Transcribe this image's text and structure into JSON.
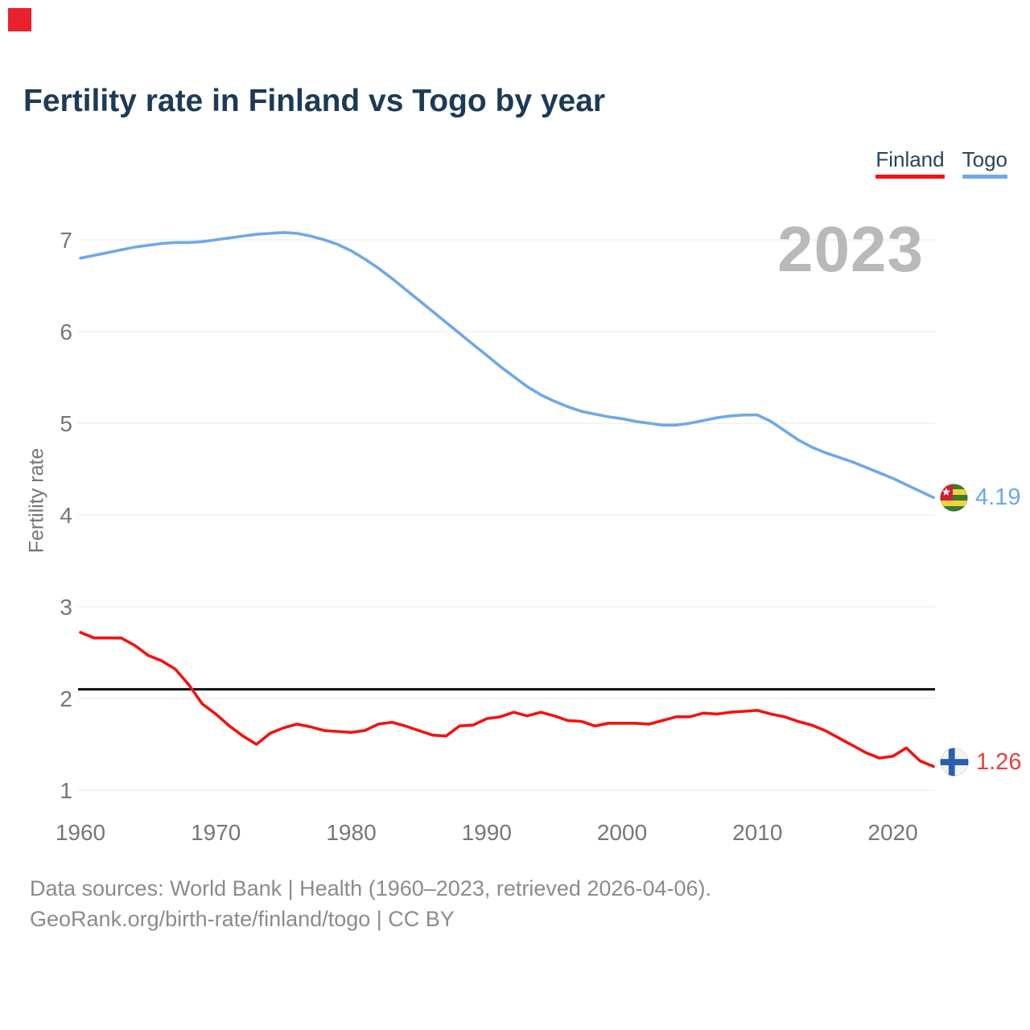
{
  "logo_color": "#e8212b",
  "header": {
    "title": "Fertility rate in Finland vs Togo by year"
  },
  "legend": {
    "items": [
      {
        "label": "Finland",
        "color": "#f31212"
      },
      {
        "label": "Togo",
        "color": "#6fa8e8"
      }
    ]
  },
  "watermark": "2023",
  "footer": {
    "line1": "Data sources: World Bank | Health (1960–2023, retrieved 2026-04-06).",
    "line2": "GeoRank.org/birth-rate/finland/togo | CC BY"
  },
  "chart_data": {
    "type": "line",
    "title": "Fertility rate in Finland vs Togo by year",
    "xlabel": "",
    "ylabel": "Fertility rate",
    "xlim": [
      1960,
      2023
    ],
    "ylim": [
      0.75,
      7.3
    ],
    "x_ticks": [
      1960,
      1970,
      1980,
      1990,
      2000,
      2010,
      2020
    ],
    "y_ticks": [
      1,
      2,
      3,
      4,
      5,
      6,
      7
    ],
    "grid": "horizontal",
    "legend_position": "top-right",
    "reference_line": {
      "value": 2.1,
      "color": "#0a0a0a"
    },
    "years": [
      1960,
      1961,
      1962,
      1963,
      1964,
      1965,
      1966,
      1967,
      1968,
      1969,
      1970,
      1971,
      1972,
      1973,
      1974,
      1975,
      1976,
      1977,
      1978,
      1979,
      1980,
      1981,
      1982,
      1983,
      1984,
      1985,
      1986,
      1987,
      1988,
      1989,
      1990,
      1991,
      1992,
      1993,
      1994,
      1995,
      1996,
      1997,
      1998,
      1999,
      2000,
      2001,
      2002,
      2003,
      2004,
      2005,
      2006,
      2007,
      2008,
      2009,
      2010,
      2011,
      2012,
      2013,
      2014,
      2015,
      2016,
      2017,
      2018,
      2019,
      2020,
      2021,
      2022,
      2023
    ],
    "series": [
      {
        "name": "Togo",
        "color": "#6fa8e8",
        "end_label": "4.19",
        "values": [
          6.8,
          6.83,
          6.86,
          6.89,
          6.92,
          6.94,
          6.96,
          6.97,
          6.97,
          6.98,
          7.0,
          7.02,
          7.04,
          7.06,
          7.07,
          7.08,
          7.07,
          7.04,
          7.0,
          6.95,
          6.88,
          6.79,
          6.69,
          6.58,
          6.46,
          6.34,
          6.22,
          6.1,
          5.98,
          5.86,
          5.74,
          5.62,
          5.51,
          5.4,
          5.31,
          5.24,
          5.18,
          5.13,
          5.1,
          5.07,
          5.05,
          5.02,
          5.0,
          4.98,
          4.98,
          5.0,
          5.03,
          5.06,
          5.08,
          5.09,
          5.09,
          5.02,
          4.92,
          4.82,
          4.74,
          4.68,
          4.63,
          4.58,
          4.52,
          4.46,
          4.4,
          4.33,
          4.26,
          4.19
        ]
      },
      {
        "name": "Finland",
        "color": "#f31212",
        "end_label": "1.26",
        "values": [
          2.72,
          2.66,
          2.66,
          2.66,
          2.58,
          2.47,
          2.41,
          2.32,
          2.15,
          1.94,
          1.83,
          1.7,
          1.59,
          1.5,
          1.62,
          1.68,
          1.72,
          1.69,
          1.65,
          1.64,
          1.63,
          1.65,
          1.72,
          1.74,
          1.7,
          1.65,
          1.6,
          1.59,
          1.7,
          1.71,
          1.78,
          1.8,
          1.85,
          1.81,
          1.85,
          1.81,
          1.76,
          1.75,
          1.7,
          1.73,
          1.73,
          1.73,
          1.72,
          1.76,
          1.8,
          1.8,
          1.84,
          1.83,
          1.85,
          1.86,
          1.87,
          1.83,
          1.8,
          1.75,
          1.71,
          1.65,
          1.57,
          1.49,
          1.41,
          1.35,
          1.37,
          1.46,
          1.32,
          1.26
        ]
      }
    ]
  }
}
